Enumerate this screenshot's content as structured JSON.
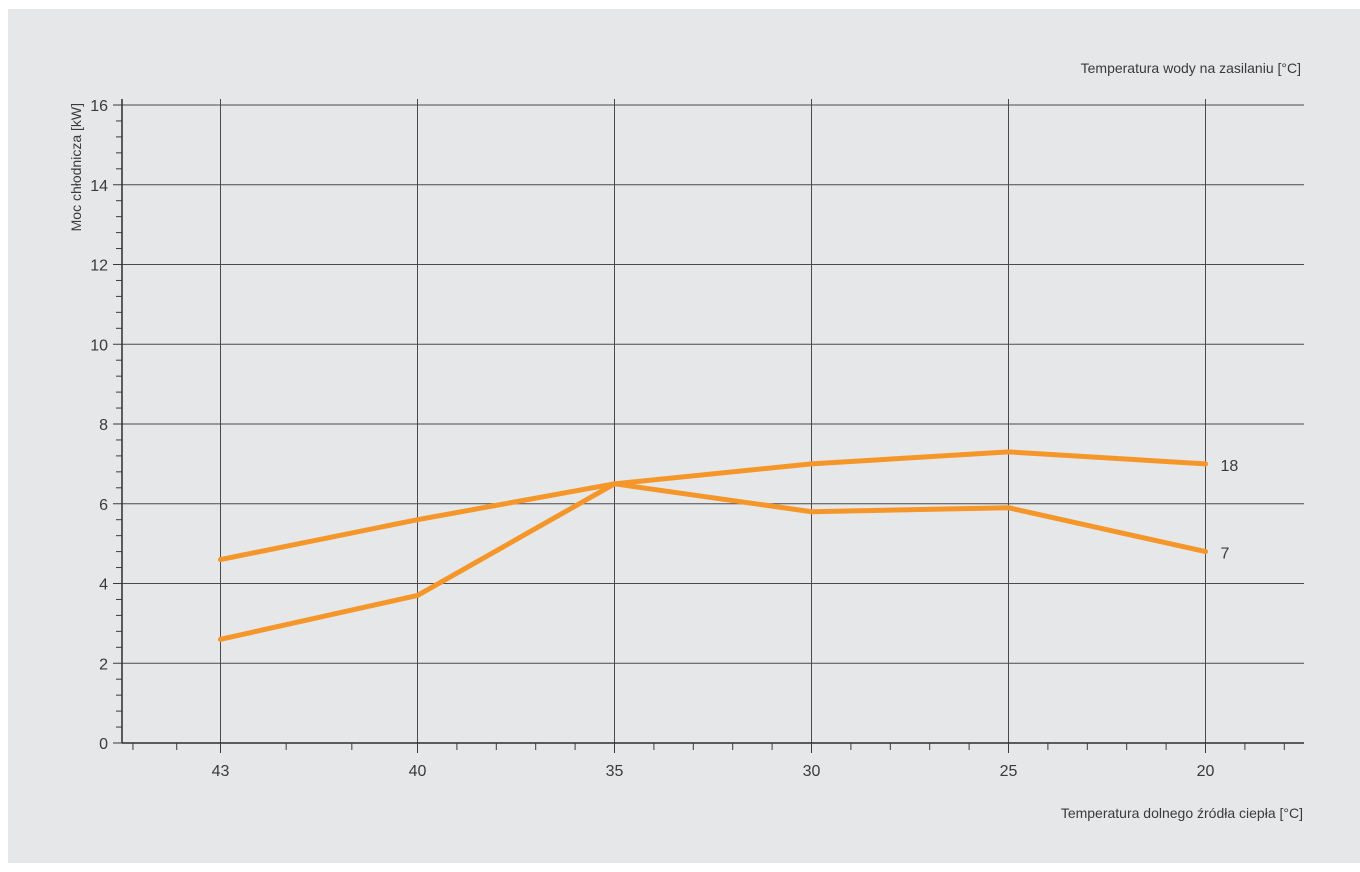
{
  "chart_data": {
    "type": "line",
    "title": "",
    "xlabel": "Temperatura dolnego źródła ciepła [°C]",
    "ylabel": "Moc chłodnicza [kW]",
    "secondary_label": "Temperatura wody na zasilaniu [°C]",
    "x": [
      43,
      40,
      35,
      30,
      25,
      20
    ],
    "x_tick_labels": [
      "43",
      "40",
      "35",
      "30",
      "25",
      "20"
    ],
    "y_tick_labels": [
      "0",
      "2",
      "4",
      "6",
      "8",
      "10",
      "12",
      "14",
      "16"
    ],
    "ylim": [
      0,
      16
    ],
    "grid": true,
    "series": [
      {
        "name": "18",
        "values": [
          4.6,
          5.6,
          6.5,
          7.0,
          7.3,
          7.0
        ]
      },
      {
        "name": "7",
        "values": [
          2.6,
          3.7,
          6.5,
          5.8,
          5.9,
          4.8
        ]
      }
    ],
    "colors": {
      "line": "#f5962a",
      "grid": "#4a4a4a",
      "background": "#e6e7e8"
    }
  }
}
